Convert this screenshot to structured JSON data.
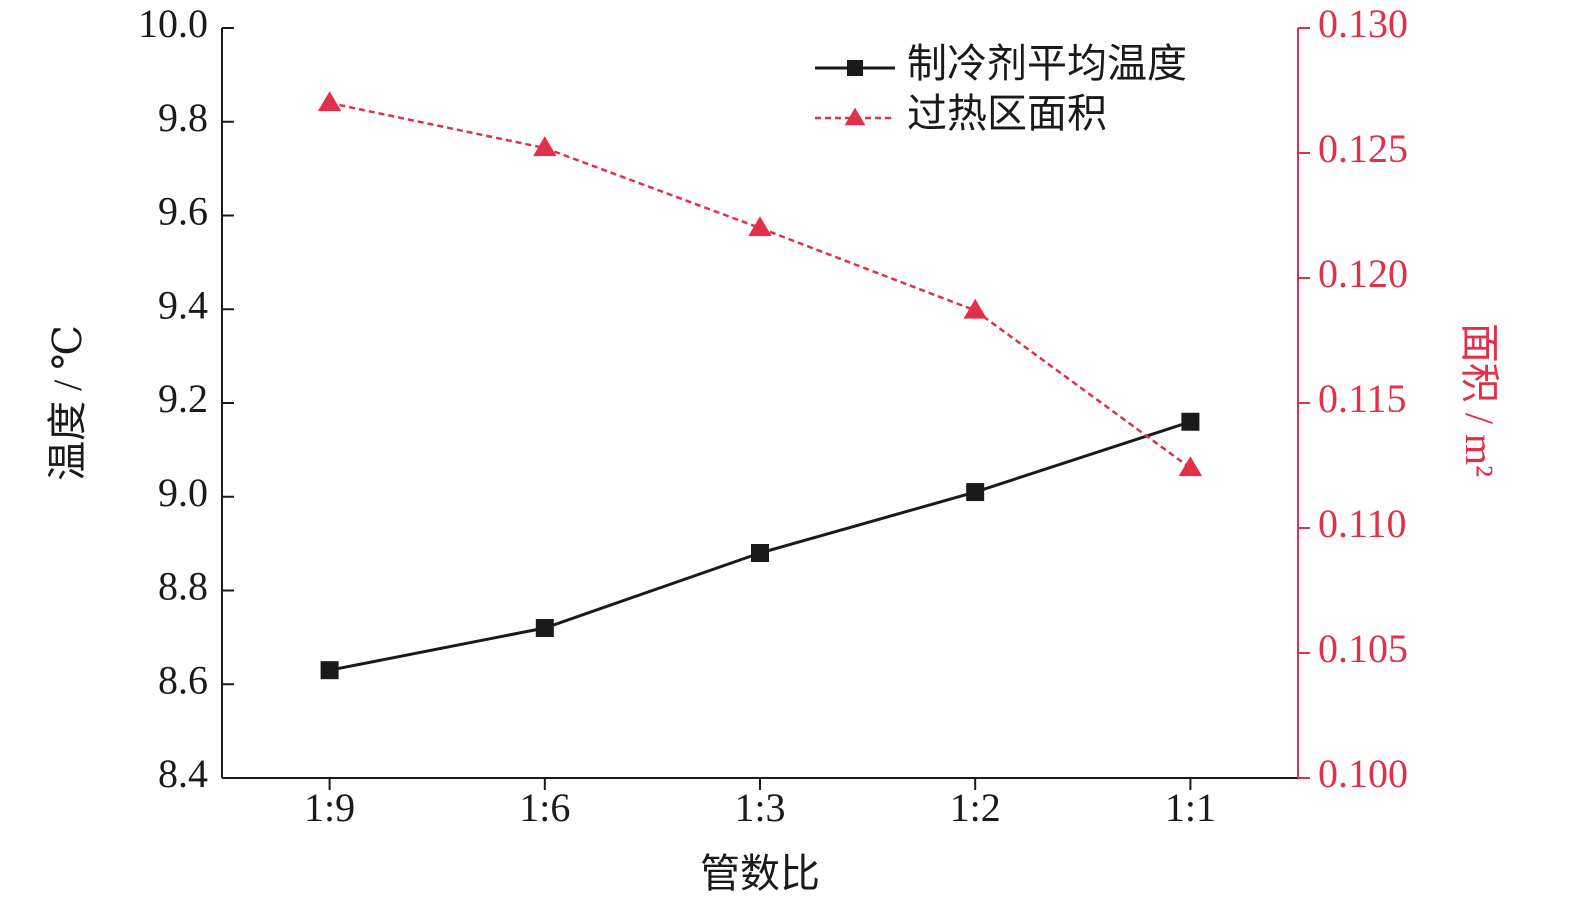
{
  "chart_data": {
    "type": "line",
    "x_label": "管数比",
    "y_label": "温度 / ℃",
    "y2_label": "面积 / m²",
    "categories": [
      "1:9",
      "1:6",
      "1:3",
      "1:2",
      "1:1"
    ],
    "series": [
      {
        "name": "制冷剂平均温度",
        "color": "#1a1a1a",
        "marker": "square",
        "line_style": "solid",
        "values": [
          8.63,
          8.72,
          8.88,
          9.01,
          9.16
        ]
      },
      {
        "name": "过热区面积",
        "color": "#e0304a",
        "marker": "triangle",
        "line_style": "dashed",
        "axis": "y2",
        "values": [
          0.127,
          0.1252,
          0.122,
          0.1187,
          0.1124
        ]
      }
    ],
    "ylim": [
      8.4,
      10.0
    ],
    "yticks": [
      8.4,
      8.6,
      8.8,
      {
        "value": 9,
        "label": "9.0"
      },
      9.2,
      9.4,
      9.6,
      9.8,
      {
        "value": 10,
        "label": "10.0"
      }
    ],
    "y2lim": [
      0.1,
      0.13
    ],
    "y2ticks": [
      {
        "value": 0.1,
        "label": "0.100"
      },
      0.105,
      {
        "value": 0.11,
        "label": "0.110"
      },
      0.115,
      {
        "value": 0.12,
        "label": "0.120"
      },
      0.125,
      {
        "value": 0.13,
        "label": "0.130"
      }
    ],
    "y2_color": "#e0304a",
    "legend": "upper right",
    "grid": false
  }
}
